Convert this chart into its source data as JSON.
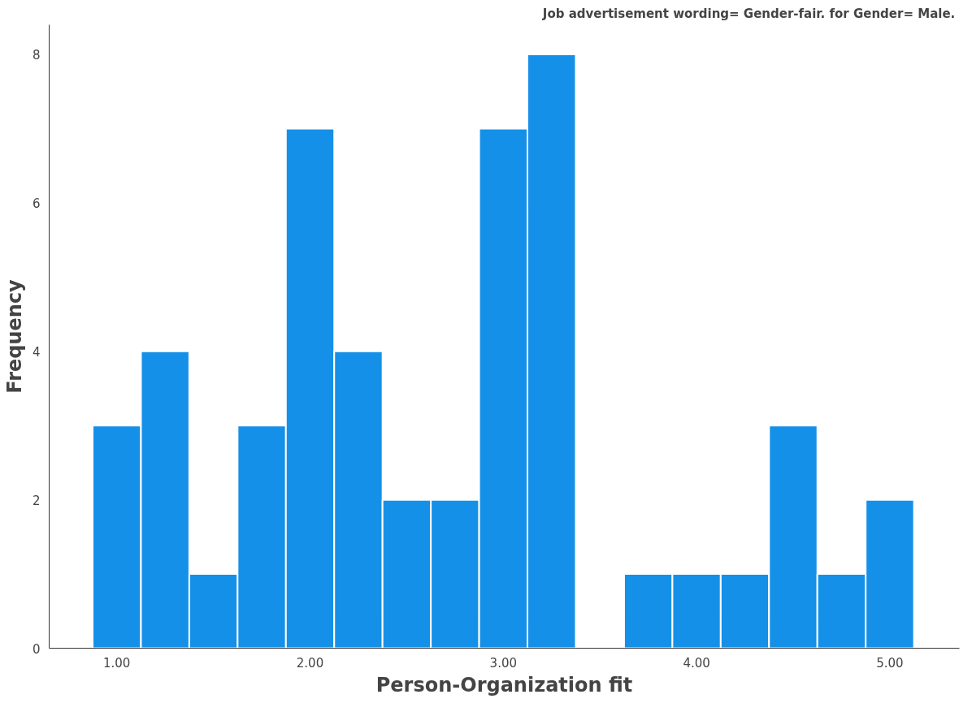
{
  "chart_data": {
    "type": "histogram",
    "title": "Job advertisement wording= Gender-fair.  for Gender= Male.",
    "xlabel": "Person-Organization fit",
    "ylabel": "Frequency",
    "bins": [
      0.875,
      1.125,
      1.375,
      1.625,
      1.875,
      2.125,
      2.375,
      2.625,
      2.875,
      3.125,
      3.375,
      3.625,
      3.875,
      4.125,
      4.375,
      4.625,
      4.875,
      5.125
    ],
    "values": [
      3,
      4,
      1,
      3,
      7,
      4,
      2,
      2,
      7,
      8,
      0,
      1,
      1,
      1,
      3,
      1,
      2
    ],
    "color": "#1590e8",
    "xlim": [
      0.65,
      5.36
    ],
    "ylim": [
      0,
      8.4
    ],
    "xticks": [
      {
        "value": 1,
        "label": "1.00"
      },
      {
        "value": 2,
        "label": "2.00"
      },
      {
        "value": 3,
        "label": "3.00"
      },
      {
        "value": 4,
        "label": "4.00"
      },
      {
        "value": 5,
        "label": "5.00"
      }
    ],
    "yticks": [
      0,
      2,
      4,
      6,
      8
    ],
    "grid": false
  }
}
